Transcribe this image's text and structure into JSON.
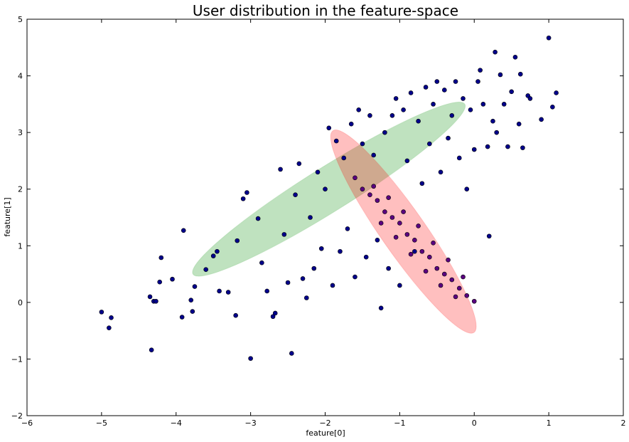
{
  "chart_data": {
    "type": "scatter",
    "title": "User distribution in the feature-space",
    "xlabel": "feature[0]",
    "ylabel": "feature[1]",
    "xlim": [
      -6,
      2
    ],
    "ylim": [
      -2,
      5
    ],
    "xticks": [
      -6,
      -5,
      -4,
      -3,
      -2,
      -1,
      0,
      1,
      2
    ],
    "yticks": [
      -2,
      -1,
      0,
      1,
      2,
      3,
      4,
      5
    ],
    "grid": false,
    "legend": "none",
    "colors": {
      "points_a": "#00008b",
      "points_b": "#5a0080",
      "ellipse_green": "#2ca02c",
      "ellipse_red": "#ff0000"
    },
    "series": [
      {
        "values": [
          [
            -5.0,
            -0.17
          ],
          [
            -4.9,
            -0.45
          ],
          [
            -4.87,
            -0.27
          ],
          [
            -4.35,
            0.1
          ],
          [
            -4.3,
            0.02
          ],
          [
            -4.27,
            0.02
          ],
          [
            -4.33,
            -0.84
          ],
          [
            -4.2,
            0.79
          ],
          [
            -4.22,
            0.36
          ],
          [
            -4.05,
            0.41
          ],
          [
            -3.92,
            -0.26
          ],
          [
            -3.9,
            1.27
          ],
          [
            -3.78,
            -0.16
          ],
          [
            -3.75,
            0.28
          ],
          [
            -3.8,
            0.04
          ],
          [
            -3.6,
            0.58
          ],
          [
            -3.5,
            0.82
          ],
          [
            -3.45,
            0.9
          ],
          [
            -3.42,
            0.2
          ],
          [
            -3.3,
            0.18
          ],
          [
            -3.18,
            1.09
          ],
          [
            -3.2,
            -0.23
          ],
          [
            -3.1,
            1.83
          ],
          [
            -3.05,
            1.94
          ],
          [
            -3.0,
            -0.99
          ],
          [
            -2.9,
            1.48
          ],
          [
            -2.85,
            0.7
          ],
          [
            -2.78,
            0.2
          ],
          [
            -2.7,
            -0.25
          ],
          [
            -2.67,
            -0.19
          ],
          [
            -2.6,
            2.35
          ],
          [
            -2.55,
            1.2
          ],
          [
            -2.5,
            0.35
          ],
          [
            -2.45,
            -0.9
          ],
          [
            -2.4,
            1.9
          ],
          [
            -2.35,
            2.45
          ],
          [
            -2.3,
            0.42
          ],
          [
            -2.25,
            0.08
          ],
          [
            -2.2,
            1.5
          ],
          [
            -2.15,
            0.6
          ],
          [
            -2.1,
            2.3
          ],
          [
            -2.05,
            0.95
          ],
          [
            -2.0,
            2.0
          ],
          [
            -1.95,
            3.08
          ],
          [
            -1.9,
            0.3
          ],
          [
            -1.85,
            2.85
          ],
          [
            -1.8,
            0.9
          ],
          [
            -1.75,
            2.55
          ],
          [
            -1.7,
            1.3
          ],
          [
            -1.65,
            3.15
          ],
          [
            -1.6,
            0.45
          ],
          [
            -1.55,
            3.4
          ],
          [
            -1.5,
            2.8
          ],
          [
            -1.45,
            0.8
          ],
          [
            -1.4,
            3.3
          ],
          [
            -1.35,
            2.6
          ],
          [
            -1.3,
            1.1
          ],
          [
            -1.25,
            -0.1
          ],
          [
            -1.2,
            3.0
          ],
          [
            -1.15,
            0.6
          ],
          [
            -1.1,
            3.3
          ],
          [
            -1.05,
            3.6
          ],
          [
            -1.0,
            0.3
          ],
          [
            -0.95,
            3.4
          ],
          [
            -0.9,
            2.5
          ],
          [
            -0.85,
            3.7
          ],
          [
            -0.8,
            0.9
          ],
          [
            -0.75,
            3.2
          ],
          [
            -0.7,
            2.1
          ],
          [
            -0.65,
            3.8
          ],
          [
            -0.6,
            2.8
          ],
          [
            -0.55,
            3.5
          ],
          [
            -0.5,
            3.9
          ],
          [
            -0.45,
            2.3
          ],
          [
            -0.4,
            3.75
          ],
          [
            -0.35,
            2.9
          ],
          [
            -0.3,
            3.3
          ],
          [
            -0.25,
            3.9
          ],
          [
            -0.2,
            2.55
          ],
          [
            -0.15,
            3.6
          ],
          [
            -0.1,
            2.0
          ],
          [
            -0.05,
            3.4
          ],
          [
            0.0,
            2.7
          ],
          [
            0.05,
            3.9
          ],
          [
            0.08,
            4.1
          ],
          [
            0.12,
            3.5
          ],
          [
            0.18,
            2.75
          ],
          [
            0.2,
            1.17
          ],
          [
            0.25,
            3.2
          ],
          [
            0.28,
            4.42
          ],
          [
            0.35,
            4.02
          ],
          [
            0.45,
            2.75
          ],
          [
            0.5,
            3.72
          ],
          [
            0.55,
            4.33
          ],
          [
            0.6,
            3.15
          ],
          [
            0.62,
            4.03
          ],
          [
            0.65,
            2.73
          ],
          [
            0.72,
            3.65
          ],
          [
            0.75,
            3.6
          ],
          [
            0.9,
            3.23
          ],
          [
            1.0,
            4.67
          ],
          [
            1.05,
            3.45
          ],
          [
            1.1,
            3.7
          ],
          [
            0.4,
            3.5
          ],
          [
            0.3,
            3.0
          ]
        ]
      },
      {
        "values": [
          [
            -1.6,
            2.2
          ],
          [
            -1.5,
            2.0
          ],
          [
            -1.4,
            1.9
          ],
          [
            -1.3,
            1.8
          ],
          [
            -1.2,
            1.6
          ],
          [
            -1.1,
            1.5
          ],
          [
            -1.0,
            1.4
          ],
          [
            -0.9,
            1.2
          ],
          [
            -0.8,
            1.1
          ],
          [
            -0.7,
            0.9
          ],
          [
            -0.6,
            0.8
          ],
          [
            -0.5,
            0.6
          ],
          [
            -0.4,
            0.5
          ],
          [
            -0.3,
            0.4
          ],
          [
            -0.2,
            0.25
          ],
          [
            -0.1,
            0.12
          ],
          [
            0.0,
            0.02
          ],
          [
            -1.35,
            2.05
          ],
          [
            -1.15,
            1.85
          ],
          [
            -0.95,
            1.6
          ],
          [
            -0.75,
            1.35
          ],
          [
            -0.55,
            1.05
          ],
          [
            -0.35,
            0.75
          ],
          [
            -0.15,
            0.45
          ],
          [
            -1.25,
            1.4
          ],
          [
            -1.05,
            1.15
          ],
          [
            -0.85,
            0.85
          ],
          [
            -0.65,
            0.55
          ],
          [
            -0.45,
            0.3
          ],
          [
            -0.25,
            0.1
          ]
        ]
      }
    ],
    "ellipses": [
      {
        "center": [
          -1.95,
          2.0
        ],
        "width": 4.3,
        "height": 0.78,
        "angle_deg": 32,
        "color_key": "ellipse_green",
        "opacity": 0.3
      },
      {
        "center": [
          -0.95,
          1.25
        ],
        "width": 3.3,
        "height": 0.78,
        "angle_deg": -55,
        "color_key": "ellipse_red",
        "opacity": 0.25
      }
    ]
  }
}
